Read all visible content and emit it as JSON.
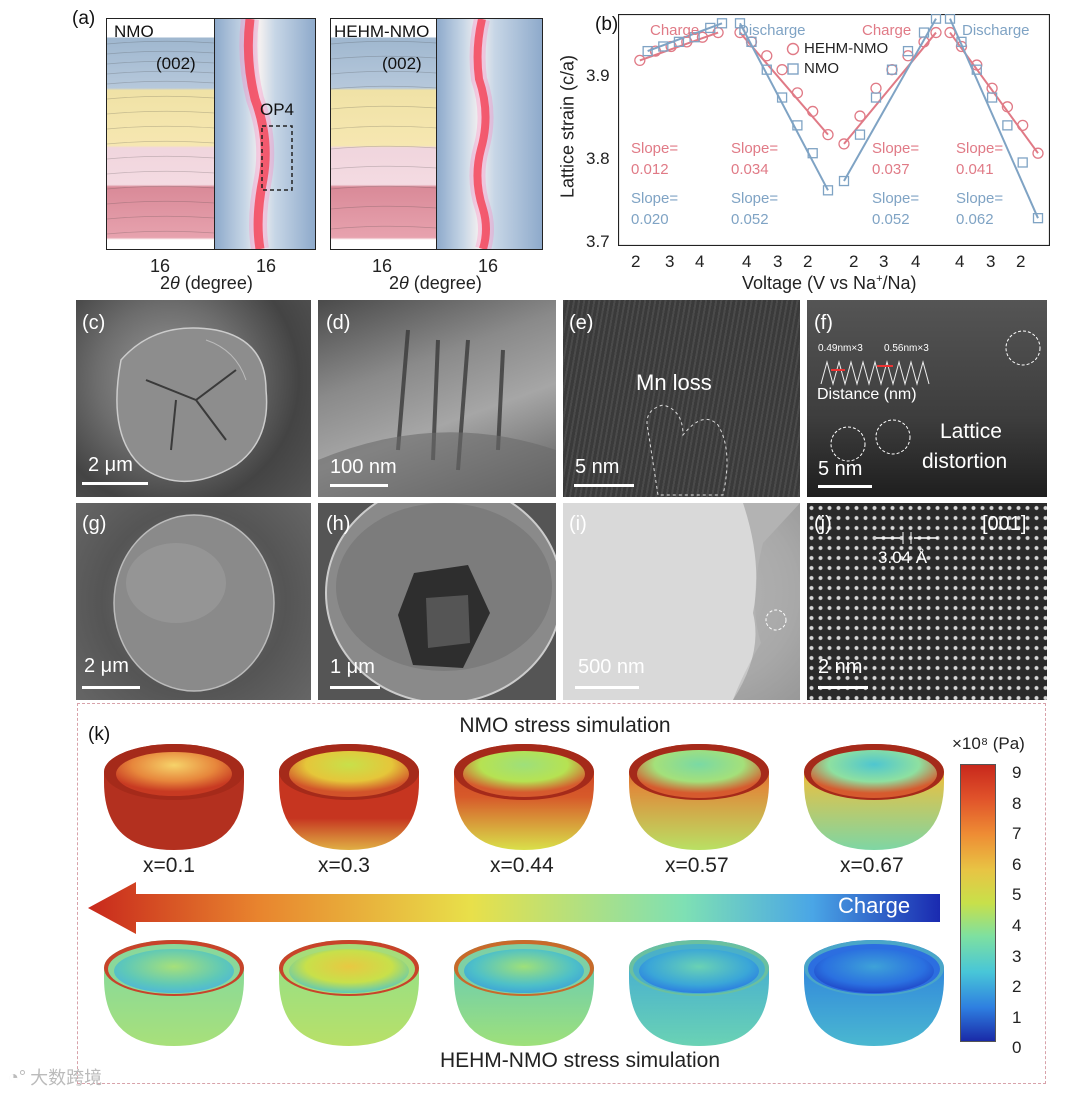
{
  "panel_a": {
    "label": "(a)",
    "left_title": "NMO",
    "right_title": "HEHM-NMO",
    "peak_label": "(002)",
    "op4_label": "OP4",
    "tick": "16",
    "xlabel_prefix": "2",
    "xlabel_theta": "θ",
    "xlabel_suffix": " (degree)"
  },
  "panel_b": {
    "label": "(b)",
    "charge": "Charge",
    "discharge": "Discharge",
    "legend_hehm": "HEHM-NMO",
    "legend_nmo": "NMO",
    "ylabel": "Lattice strain (c/a)",
    "xlabel_pre": "Voltage (V vs Na",
    "xlabel_sup": "+",
    "xlabel_post": "/Na)",
    "slope_word": "Slope=",
    "slopes_hehm": [
      "0.012",
      "0.034",
      "0.037",
      "0.041"
    ],
    "slopes_nmo": [
      "0.020",
      "0.052",
      "0.052",
      "0.062"
    ],
    "yticks": [
      "3.9",
      "3.8",
      "3.7"
    ],
    "xticks": [
      "2",
      "3",
      "4",
      "4",
      "3",
      "2",
      "2",
      "3",
      "4",
      "4",
      "3",
      "2"
    ],
    "colors": {
      "hehm": "#e07a86",
      "nmo": "#7fa3c4"
    }
  },
  "chart_data": {
    "type": "scatter",
    "ylabel": "Lattice strain (c/a)",
    "xlabel": "Voltage (V vs Na+/Na)",
    "ylim": [
      3.7,
      3.95
    ],
    "segments": [
      "Charge",
      "Discharge",
      "Charge",
      "Discharge"
    ],
    "series": [
      {
        "name": "HEHM-NMO",
        "marker": "circle",
        "slopes": [
          0.012,
          0.034,
          0.037,
          0.041
        ],
        "segments": [
          {
            "x": [
              2.2,
              2.6,
              3.0,
              3.4,
              3.8,
              4.2
            ],
            "y": [
              3.9,
              3.91,
              3.915,
              3.92,
              3.925,
              3.93
            ]
          },
          {
            "x": [
              4.3,
              4.0,
              3.6,
              3.2,
              2.8,
              2.4,
              2.0
            ],
            "y": [
              3.93,
              3.92,
              3.905,
              3.89,
              3.865,
              3.845,
              3.82
            ]
          },
          {
            "x": [
              2.0,
              2.4,
              2.8,
              3.2,
              3.6,
              4.0,
              4.3
            ],
            "y": [
              3.81,
              3.84,
              3.87,
              3.89,
              3.905,
              3.92,
              3.93
            ]
          },
          {
            "x": [
              4.3,
              4.0,
              3.6,
              3.2,
              2.8,
              2.4,
              2.0
            ],
            "y": [
              3.93,
              3.915,
              3.895,
              3.87,
              3.85,
              3.83,
              3.8
            ]
          }
        ]
      },
      {
        "name": "NMO",
        "marker": "square",
        "slopes": [
          0.02,
          0.052,
          0.052,
          0.062
        ],
        "segments": [
          {
            "x": [
              2.4,
              2.8,
              3.2,
              3.6,
              4.0,
              4.3
            ],
            "y": [
              3.91,
              3.915,
              3.92,
              3.925,
              3.935,
              3.94
            ]
          },
          {
            "x": [
              4.3,
              4.0,
              3.6,
              3.2,
              2.8,
              2.4,
              2.0
            ],
            "y": [
              3.94,
              3.92,
              3.89,
              3.86,
              3.83,
              3.8,
              3.76
            ]
          },
          {
            "x": [
              2.0,
              2.4,
              2.8,
              3.2,
              3.6,
              4.0,
              4.3
            ],
            "y": [
              3.77,
              3.82,
              3.86,
              3.89,
              3.91,
              3.93,
              3.945
            ]
          },
          {
            "x": [
              4.3,
              4.0,
              3.6,
              3.2,
              2.8,
              2.4,
              2.0
            ],
            "y": [
              3.945,
              3.92,
              3.89,
              3.86,
              3.83,
              3.79,
              3.73
            ]
          }
        ]
      }
    ]
  },
  "micrographs": {
    "c": {
      "label": "(c)",
      "scale": "2 μm"
    },
    "d": {
      "label": "(d)",
      "scale": "100 nm"
    },
    "e": {
      "label": "(e)",
      "scale": "5 nm",
      "annotation": "Mn loss"
    },
    "f": {
      "label": "(f)",
      "scale": "5 nm",
      "annotation1": "Lattice",
      "annotation2": "distortion",
      "inset1": "0.49nm×3",
      "inset2": "0.56nm×3",
      "inset_x": "Distance (nm)"
    },
    "g": {
      "label": "(g)",
      "scale": "2 μm"
    },
    "h": {
      "label": "(h)",
      "scale": "1 μm"
    },
    "i": {
      "label": "(i)",
      "scale": "500 nm"
    },
    "j": {
      "label": "(j)",
      "scale": "2 nm",
      "zone": "[001]",
      "spacing": "3.04 Å"
    }
  },
  "panel_k": {
    "label": "(k)",
    "top_title": "NMO stress simulation",
    "bottom_title": "HEHM-NMO stress simulation",
    "x_labels": [
      "x=0.1",
      "x=0.3",
      "x=0.44",
      "x=0.57",
      "x=0.67"
    ],
    "arrow_label": "Charge",
    "colorbar_title": "×10⁸ (Pa)",
    "colorbar_ticks": [
      "9",
      "8",
      "7",
      "6",
      "5",
      "4",
      "3",
      "2",
      "1",
      "0"
    ]
  },
  "watermark": "大数跨境"
}
